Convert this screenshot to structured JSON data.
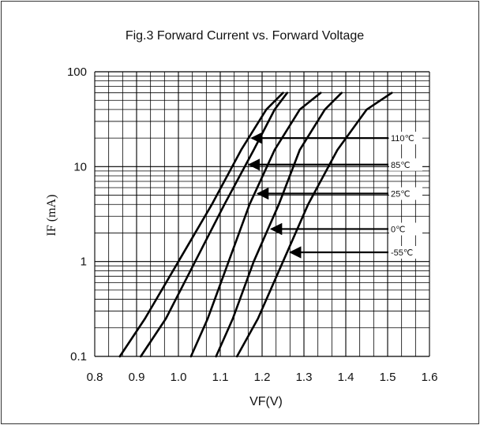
{
  "chart_data": {
    "type": "line",
    "title": "Fig.3  Forward Current vs. Forward Voltage",
    "xlabel": "VF(V)",
    "ylabel": "IF (mA)",
    "xlim": [
      0.8,
      1.6
    ],
    "ylim": [
      0.1,
      100
    ],
    "yscale": "log",
    "grid": true,
    "x_ticks": [
      "0.8",
      "0.9",
      "1.0",
      "1.1",
      "1.2",
      "1.3",
      "1.4",
      "1.5",
      "1.6"
    ],
    "y_ticks": [
      "0.1",
      "1",
      "10",
      "100"
    ],
    "series": [
      {
        "name": "110℃",
        "x": [
          0.86,
          0.92,
          1.0,
          1.08,
          1.15,
          1.21,
          1.25
        ],
        "y": [
          0.1,
          0.25,
          1,
          4,
          15,
          40,
          60
        ]
      },
      {
        "name": "85℃",
        "x": [
          0.91,
          0.97,
          1.04,
          1.11,
          1.18,
          1.23,
          1.26
        ],
        "y": [
          0.1,
          0.25,
          1,
          4,
          15,
          40,
          60
        ]
      },
      {
        "name": "25℃",
        "x": [
          1.03,
          1.07,
          1.12,
          1.17,
          1.23,
          1.29,
          1.34
        ],
        "y": [
          0.1,
          0.25,
          1,
          4,
          15,
          40,
          60
        ]
      },
      {
        "name": "0℃",
        "x": [
          1.09,
          1.13,
          1.18,
          1.24,
          1.29,
          1.35,
          1.39
        ],
        "y": [
          0.1,
          0.25,
          1,
          4,
          15,
          40,
          60
        ]
      },
      {
        "name": "-55℃",
        "x": [
          1.14,
          1.19,
          1.25,
          1.31,
          1.38,
          1.45,
          1.51
        ],
        "y": [
          0.1,
          0.25,
          1,
          4,
          15,
          40,
          60
        ]
      }
    ],
    "annotations": [
      {
        "text": "110℃",
        "series": "110℃",
        "at_y": 20
      },
      {
        "text": "85℃",
        "series": "85℃",
        "at_y": 10.5
      },
      {
        "text": "25℃",
        "series": "25℃",
        "at_y": 5.2
      },
      {
        "text": "0℃",
        "series": "0℃",
        "at_y": 2.2
      },
      {
        "text": "-55℃",
        "series": "-55℃",
        "at_y": 1.25
      }
    ]
  }
}
